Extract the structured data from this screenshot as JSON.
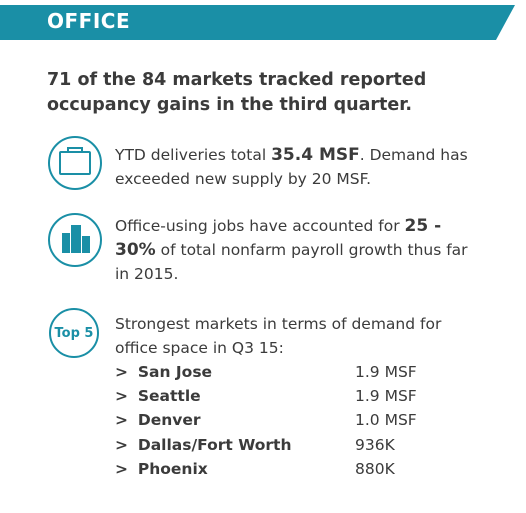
{
  "header": {
    "title": "OFFICE"
  },
  "headline": "71 of the 84 markets tracked reported occupancy gains in the third quarter.",
  "items": [
    {
      "text_before": "YTD deliveries total ",
      "highlight": "35.4 MSF",
      "text_after": ". Demand has exceeded new supply by 20 MSF."
    },
    {
      "text_before": "Office-using jobs have accounted for ",
      "highlight": "25 - 30%",
      "text_after": " of total nonfarm payroll growth thus far in 2015."
    },
    {
      "badge": "Top 5",
      "text": "Strongest markets in terms of demand for office space in Q3 15:"
    }
  ],
  "list_marker": ">",
  "markets": [
    {
      "name": "San Jose",
      "value": "1.9 MSF"
    },
    {
      "name": "Seattle",
      "value": "1.9 MSF"
    },
    {
      "name": "Denver",
      "value": "1.0 MSF"
    },
    {
      "name": "Dallas/Fort Worth",
      "value": "936K"
    },
    {
      "name": "Phoenix",
      "value": "880K"
    }
  ]
}
